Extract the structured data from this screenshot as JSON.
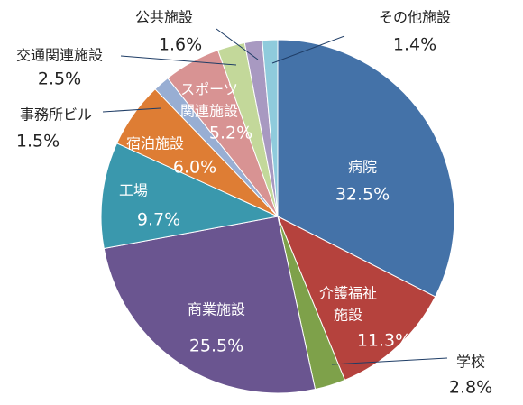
{
  "chart_data": {
    "type": "pie",
    "title": "",
    "legend": "none",
    "slices": [
      {
        "label": "病院",
        "value": 32.5,
        "display": "32.5%",
        "color": "#4472a8"
      },
      {
        "label": "介護福祉施設",
        "label_lines": [
          "介護福祉",
          "施設"
        ],
        "value": 11.3,
        "display": "11.3%",
        "color": "#b5423d"
      },
      {
        "label": "学校",
        "value": 2.8,
        "display": "2.8%",
        "color": "#7ea14a"
      },
      {
        "label": "商業施設",
        "value": 25.5,
        "display": "25.5%",
        "color": "#6a5590"
      },
      {
        "label": "工場",
        "value": 9.7,
        "display": "9.7%",
        "color": "#3a98ad"
      },
      {
        "label": "宿泊施設",
        "value": 6.0,
        "display": "6.0%",
        "color": "#de7d34"
      },
      {
        "label": "事務所ビル",
        "value": 1.5,
        "display": "1.5%",
        "color": "#98aed3"
      },
      {
        "label": "スポーツ関連施設",
        "label_lines": [
          "スポーツ",
          "関連施設"
        ],
        "value": 5.2,
        "display": "5.2%",
        "color": "#d89393"
      },
      {
        "label": "交通関連施設",
        "value": 2.5,
        "display": "2.5%",
        "color": "#c3d89a"
      },
      {
        "label": "公共施設",
        "value": 1.6,
        "display": "1.6%",
        "color": "#a899c1"
      },
      {
        "label": "その他施設",
        "value": 1.4,
        "display": "1.4%",
        "color": "#8fcbdc"
      }
    ]
  }
}
